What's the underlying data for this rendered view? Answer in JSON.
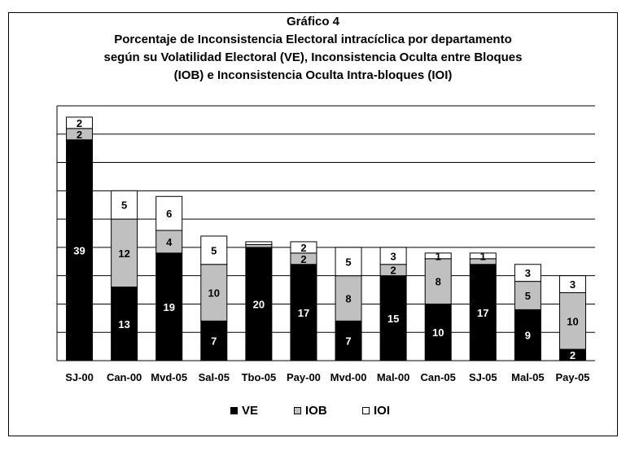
{
  "chart_data": {
    "type": "bar",
    "stacked": true,
    "title_lines": [
      "Gráfico 4",
      "Porcentaje de Inconsistencia Electoral intracíclica por departamento",
      "según su Volatilidad Electoral (VE), Inconsistencia Oculta entre Bloques",
      "(IOB) e Inconsistencia Oculta Intra-bloques (IOI)"
    ],
    "categories": [
      "SJ-00",
      "Can-00",
      "Mvd-05",
      "Sal-05",
      "Tbo-05",
      "Pay-00",
      "Mvd-00",
      "Mal-00",
      "Can-05",
      "SJ-05",
      "Mal-05",
      "Pay-05"
    ],
    "series": [
      {
        "name": "VE",
        "color": "#000000",
        "label_color": "#ffffff",
        "values": [
          39,
          13,
          19,
          7,
          20,
          17,
          7,
          15,
          10,
          17,
          9,
          2
        ]
      },
      {
        "name": "IOB",
        "color": "#c0c0c0",
        "label_color": "#000000",
        "values": [
          2,
          12,
          4,
          10,
          0.5,
          2,
          8,
          2,
          8,
          1,
          5,
          10
        ]
      },
      {
        "name": "IOI",
        "color": "#ffffff",
        "label_color": "#000000",
        "values": [
          2,
          5,
          6,
          5,
          0.5,
          2,
          5,
          3,
          1,
          1,
          3,
          3
        ]
      }
    ],
    "data_labels": [
      [
        "39",
        "13",
        "19",
        "7",
        "20",
        "17",
        "7",
        "15",
        "10",
        "17",
        "9",
        "2"
      ],
      [
        "2",
        "12",
        "4",
        "10",
        "",
        "2",
        "8",
        "2",
        "8",
        "",
        "5",
        "10"
      ],
      [
        "2",
        "5",
        "6",
        "5",
        "",
        "2",
        "5",
        "3",
        "1",
        "1",
        "3",
        "3"
      ]
    ],
    "ylim": [
      0,
      45
    ],
    "ytick_step": 5,
    "grid": true,
    "legend_position": "bottom",
    "xlabel": "",
    "ylabel": ""
  },
  "legend": [
    {
      "label": "VE",
      "color": "#000000"
    },
    {
      "label": "IOB",
      "color": "#c0c0c0"
    },
    {
      "label": "IOI",
      "color": "#ffffff"
    }
  ]
}
